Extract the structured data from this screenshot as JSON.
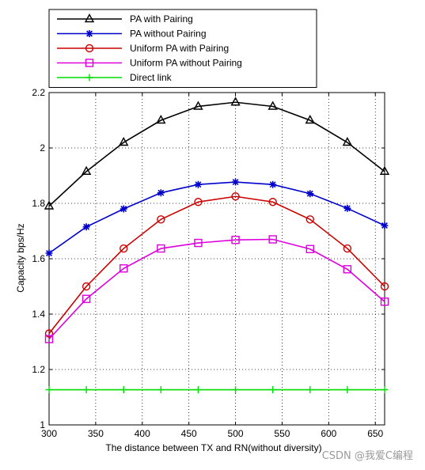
{
  "chart_data": {
    "type": "line",
    "title": "",
    "xlabel": "The distance between TX and RN(without diversity)",
    "ylabel": "Capacity bps/Hz",
    "xlim": [
      300,
      660
    ],
    "ylim": [
      1,
      2.2
    ],
    "xticks": [
      "300",
      "350",
      "400",
      "450",
      "500",
      "550",
      "600",
      "650"
    ],
    "yticks": [
      "1",
      "1.2",
      "1.4",
      "1.6",
      "1.8",
      "2",
      "2.2"
    ],
    "grid": true,
    "legend_position": "top",
    "x": [
      300,
      340,
      380,
      420,
      460,
      500,
      540,
      580,
      620,
      660
    ],
    "series": [
      {
        "name": "PA with Pairing",
        "color": "#000000",
        "marker": "triangle",
        "values": [
          1.79,
          1.915,
          2.02,
          2.1,
          2.15,
          2.165,
          2.15,
          2.1,
          2.02,
          1.915
        ]
      },
      {
        "name": "PA without Pairing",
        "color": "#0000cc",
        "marker": "star",
        "values": [
          1.62,
          1.715,
          1.78,
          1.838,
          1.868,
          1.877,
          1.868,
          1.835,
          1.782,
          1.72
        ]
      },
      {
        "name": "Uniform PA with Pairing",
        "color": "#cc0000",
        "marker": "circle",
        "values": [
          1.33,
          1.5,
          1.637,
          1.742,
          1.805,
          1.825,
          1.805,
          1.742,
          1.637,
          1.5
        ]
      },
      {
        "name": "Uniform PA without Pairing",
        "color": "#dd00dd",
        "marker": "square",
        "values": [
          1.31,
          1.455,
          1.565,
          1.637,
          1.657,
          1.668,
          1.67,
          1.635,
          1.562,
          1.445
        ]
      },
      {
        "name": "Direct link",
        "color": "#00dd00",
        "marker": "plus",
        "values": [
          1.127,
          1.127,
          1.127,
          1.127,
          1.127,
          1.127,
          1.127,
          1.127,
          1.127,
          1.127
        ]
      }
    ]
  },
  "watermark": "CSDN @我爱C编程"
}
